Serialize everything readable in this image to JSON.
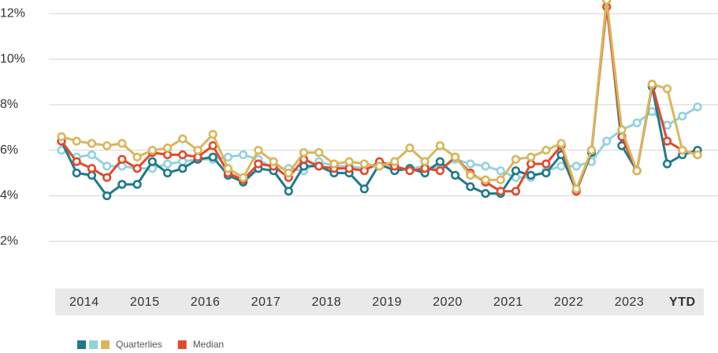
{
  "chart_data": {
    "type": "line",
    "x_labels": [
      "2014",
      "2015",
      "2016",
      "2017",
      "2018",
      "2019",
      "2020",
      "2021",
      "2022",
      "2023",
      "YTD"
    ],
    "ylim": [
      0,
      12.6
    ],
    "yticks": [
      {
        "value": 2,
        "label": "2%"
      },
      {
        "value": 4,
        "label": "4%"
      },
      {
        "value": 6,
        "label": "6%"
      },
      {
        "value": 8,
        "label": "8%"
      },
      {
        "value": 10,
        "label": "10%"
      },
      {
        "value": 12,
        "label": "12%"
      }
    ],
    "grid": true,
    "series": [
      {
        "name": "Quarterlies",
        "color": "#1e7a8a",
        "values": [
          6.4,
          5.0,
          4.9,
          4.0,
          4.5,
          4.5,
          5.5,
          5.0,
          5.2,
          5.6,
          5.7,
          4.9,
          4.6,
          5.2,
          5.1,
          4.2,
          5.3,
          5.3,
          5.0,
          5.0,
          4.3,
          5.4,
          5.1,
          5.2,
          5.0,
          5.5,
          4.9,
          4.4,
          4.1,
          4.1,
          5.1,
          4.9,
          5.0,
          5.8,
          4.2,
          5.9,
          12.6,
          6.2,
          5.1,
          8.8,
          5.4,
          5.8,
          6.0
        ]
      },
      {
        "name": "Quarterlies",
        "color": "#93d2dd",
        "values": [
          6.0,
          5.7,
          5.8,
          5.3,
          5.3,
          5.2,
          5.2,
          5.4,
          5.5,
          5.6,
          5.6,
          5.7,
          5.8,
          5.6,
          5.2,
          5.2,
          5.1,
          5.5,
          5.3,
          5.3,
          5.2,
          5.3,
          5.2,
          5.2,
          5.3,
          5.2,
          5.6,
          5.4,
          5.3,
          5.1,
          4.8,
          4.8,
          5.1,
          5.3,
          5.3,
          5.5,
          6.4,
          6.9,
          7.2,
          7.7,
          7.1,
          7.5,
          7.9
        ]
      },
      {
        "name": "Quarterlies",
        "color": "#d9b65b",
        "values": [
          6.6,
          6.4,
          6.3,
          6.2,
          6.3,
          5.7,
          6.0,
          6.1,
          6.5,
          6.0,
          6.7,
          5.2,
          4.8,
          6.0,
          5.5,
          5.0,
          5.9,
          5.9,
          5.4,
          5.5,
          5.4,
          5.3,
          5.5,
          6.1,
          5.5,
          6.2,
          5.7,
          4.9,
          4.7,
          4.7,
          5.6,
          5.7,
          6.0,
          6.3,
          4.3,
          6.0,
          12.6,
          6.9,
          5.1,
          8.9,
          8.7,
          6.0,
          5.8
        ]
      },
      {
        "name": "Median",
        "color": "#e04a2c",
        "values": [
          6.4,
          5.5,
          5.2,
          4.8,
          5.6,
          5.2,
          5.9,
          5.8,
          5.8,
          5.7,
          6.2,
          5.0,
          4.7,
          5.4,
          5.3,
          4.8,
          5.6,
          5.3,
          5.2,
          5.2,
          5.1,
          5.5,
          5.3,
          5.1,
          5.2,
          5.1,
          5.7,
          5.0,
          4.6,
          4.2,
          4.2,
          5.4,
          5.4,
          6.2,
          4.2,
          6.0,
          12.3,
          6.6,
          5.1,
          8.9,
          6.4,
          6.0,
          5.8
        ]
      }
    ]
  }
}
